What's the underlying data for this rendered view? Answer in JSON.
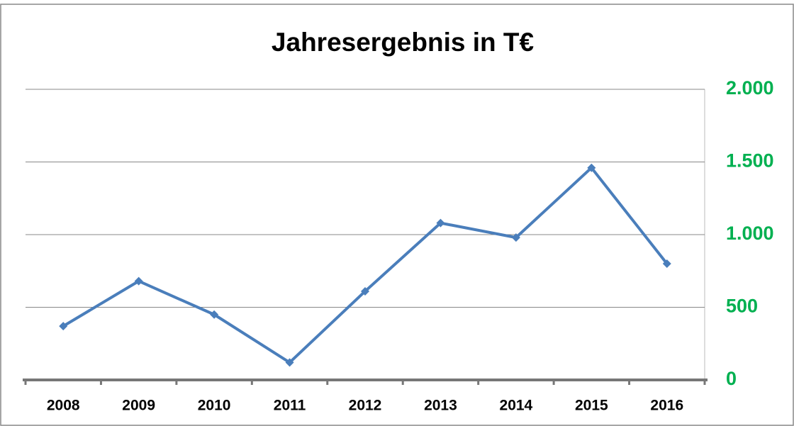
{
  "chart_data": {
    "type": "line",
    "title": "Jahresergebnis in T€",
    "categories": [
      "2008",
      "2009",
      "2010",
      "2011",
      "2012",
      "2013",
      "2014",
      "2015",
      "2016"
    ],
    "series": [
      {
        "name": "Jahresergebnis",
        "color": "#4a7ebb",
        "values": [
          370,
          680,
          450,
          120,
          610,
          1080,
          980,
          1460,
          800
        ]
      }
    ],
    "ylim": [
      0,
      2000
    ],
    "yticks": [
      0,
      500,
      {
        "value": 1000,
        "label": "1.000"
      },
      {
        "value": 1500,
        "label": "1.500"
      },
      {
        "value": 2000,
        "label": "2.000"
      }
    ],
    "yaxis_side": "right",
    "ytick_color": "#00b050",
    "grid": true
  }
}
